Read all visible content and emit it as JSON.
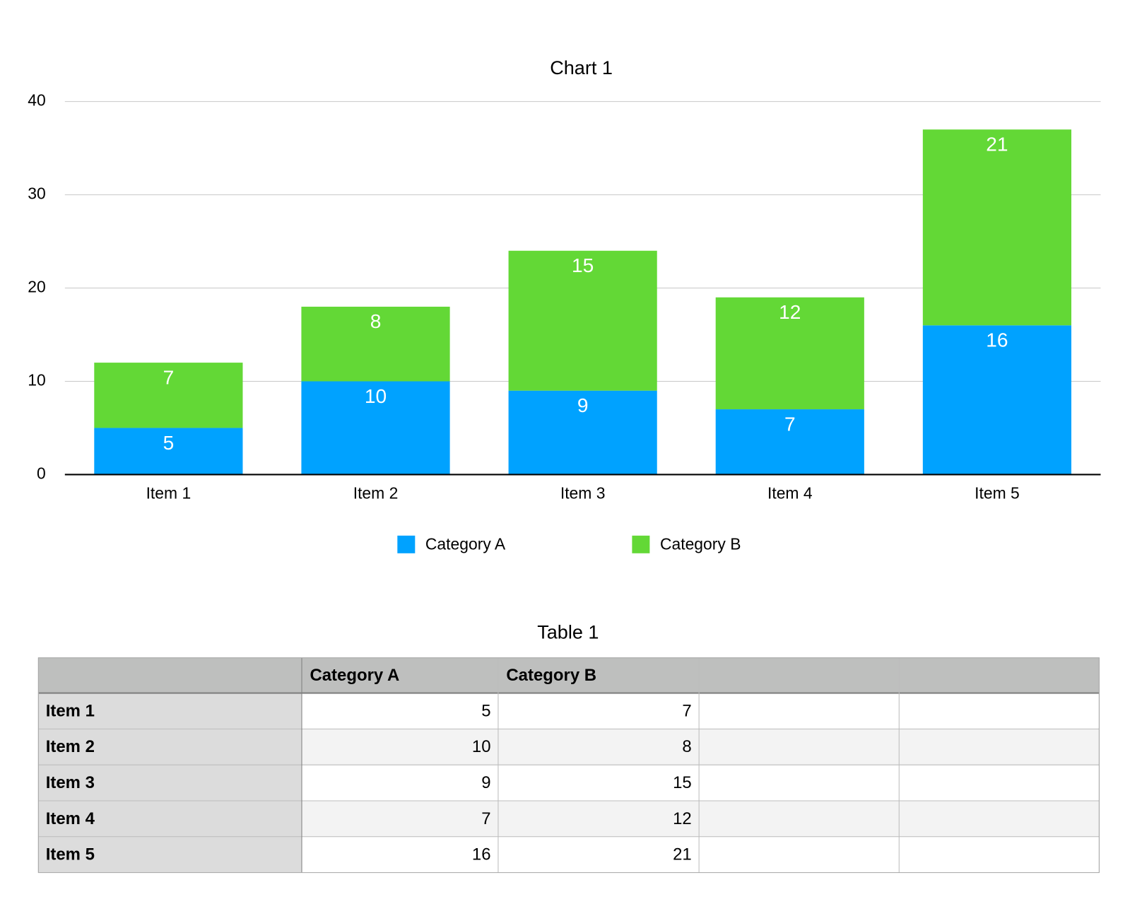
{
  "chart_data": {
    "type": "stacked_bar",
    "title": "Chart 1",
    "categories": [
      "Item 1",
      "Item 2",
      "Item 3",
      "Item 4",
      "Item 5"
    ],
    "series": [
      {
        "name": "Category A",
        "color": "#00a2ff",
        "values": [
          5,
          10,
          9,
          7,
          16
        ]
      },
      {
        "name": "Category B",
        "color": "#63d836",
        "values": [
          7,
          8,
          15,
          12,
          21
        ]
      }
    ],
    "ylim": [
      0,
      40
    ],
    "yticks": [
      0,
      10,
      20,
      30,
      40
    ],
    "grid": true,
    "legend": "bottom"
  },
  "table": {
    "title": "Table 1",
    "columns": [
      "Category A",
      "Category B"
    ],
    "rows": [
      {
        "label": "Item 1",
        "values": [
          5,
          7
        ]
      },
      {
        "label": "Item 2",
        "values": [
          10,
          8
        ]
      },
      {
        "label": "Item 3",
        "values": [
          9,
          15
        ]
      },
      {
        "label": "Item 4",
        "values": [
          7,
          12
        ]
      },
      {
        "label": "Item 5",
        "values": [
          16,
          21
        ]
      }
    ]
  }
}
